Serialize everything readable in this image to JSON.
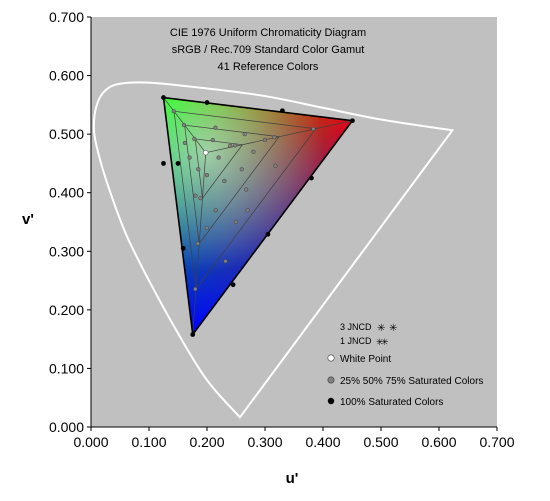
{
  "chart_data": {
    "type": "scatter",
    "title_lines": [
      "CIE 1976 Uniform Chromaticity Diagram",
      "sRGB / Rec.709 Standard Color Gamut",
      "41 Reference Colors"
    ],
    "xlabel": "u'",
    "ylabel": "v'",
    "xlim": [
      0,
      0.7
    ],
    "ylim": [
      0,
      0.7
    ],
    "xticks": [
      "0.000",
      "0.100",
      "0.200",
      "0.300",
      "0.400",
      "0.500",
      "0.600",
      "0.700"
    ],
    "yticks": [
      "0.000",
      "0.100",
      "0.200",
      "0.300",
      "0.400",
      "0.500",
      "0.600",
      "0.700"
    ],
    "grid": false,
    "plot_background": "#c0c0c0",
    "spectral_locus": [
      [
        0.2568,
        0.0165
      ],
      [
        0.2,
        0.08
      ],
      [
        0.15,
        0.16
      ],
      [
        0.1,
        0.25
      ],
      [
        0.06,
        0.33
      ],
      [
        0.03,
        0.41
      ],
      [
        0.012,
        0.47
      ],
      [
        0.005,
        0.51
      ],
      [
        0.01,
        0.55
      ],
      [
        0.025,
        0.575
      ],
      [
        0.05,
        0.586
      ],
      [
        0.1,
        0.588
      ],
      [
        0.2,
        0.578
      ],
      [
        0.3,
        0.565
      ],
      [
        0.4,
        0.545
      ],
      [
        0.5,
        0.525
      ],
      [
        0.623,
        0.5065
      ]
    ],
    "gamut_triangle": {
      "red": [
        0.4507,
        0.5229
      ],
      "green": [
        0.125,
        0.5625
      ],
      "blue": [
        0.1754,
        0.1579
      ],
      "white": [
        0.1978,
        0.4683
      ]
    },
    "reference_colors": {
      "saturated_100": [
        [
          0.4507,
          0.5229
        ],
        [
          0.125,
          0.5625
        ],
        [
          0.1754,
          0.1579
        ],
        [
          0.2,
          0.554
        ],
        [
          0.33,
          0.54
        ],
        [
          0.38,
          0.425
        ],
        [
          0.305,
          0.329
        ],
        [
          0.245,
          0.243
        ],
        [
          0.159,
          0.305
        ],
        [
          0.15,
          0.45
        ],
        [
          0.125,
          0.45
        ]
      ],
      "saturated_25_50_75": [
        [
          0.3834,
          0.5088
        ],
        [
          0.1427,
          0.539
        ],
        [
          0.1799,
          0.2355
        ],
        [
          0.316,
          0.4948
        ],
        [
          0.1605,
          0.5155
        ],
        [
          0.1843,
          0.3131
        ],
        [
          0.2487,
          0.4808
        ],
        [
          0.1782,
          0.4918
        ],
        [
          0.1888,
          0.3907
        ],
        [
          0.2145,
          0.511
        ],
        [
          0.318,
          0.446
        ],
        [
          0.2675,
          0.4055
        ],
        [
          0.25,
          0.35
        ],
        [
          0.232,
          0.283
        ],
        [
          0.18,
          0.395
        ],
        [
          0.162,
          0.485
        ],
        [
          0.24,
          0.48
        ],
        [
          0.26,
          0.44
        ],
        [
          0.23,
          0.42
        ],
        [
          0.2,
          0.43
        ],
        [
          0.185,
          0.44
        ],
        [
          0.215,
          0.37
        ],
        [
          0.28,
          0.47
        ],
        [
          0.21,
          0.49
        ],
        [
          0.27,
          0.37
        ],
        [
          0.2,
          0.34
        ],
        [
          0.3,
          0.49
        ],
        [
          0.265,
          0.5
        ],
        [
          0.17,
          0.46
        ],
        [
          0.22,
          0.46
        ]
      ]
    },
    "legend": {
      "placement": "bottom-right",
      "jncd_3": "3 JNCD",
      "jncd_1": "1 JNCD",
      "white_point": "White Point",
      "partial": "25% 50% 75% Saturated Colors",
      "full": "100% Saturated Colors"
    },
    "colors": {
      "locus": "#ffffff",
      "triangle_edge": "#000000",
      "inner_edge": "#404040",
      "marker_100": "#000000",
      "marker_partial": "#808080",
      "marker_white": "#ffffff"
    }
  }
}
